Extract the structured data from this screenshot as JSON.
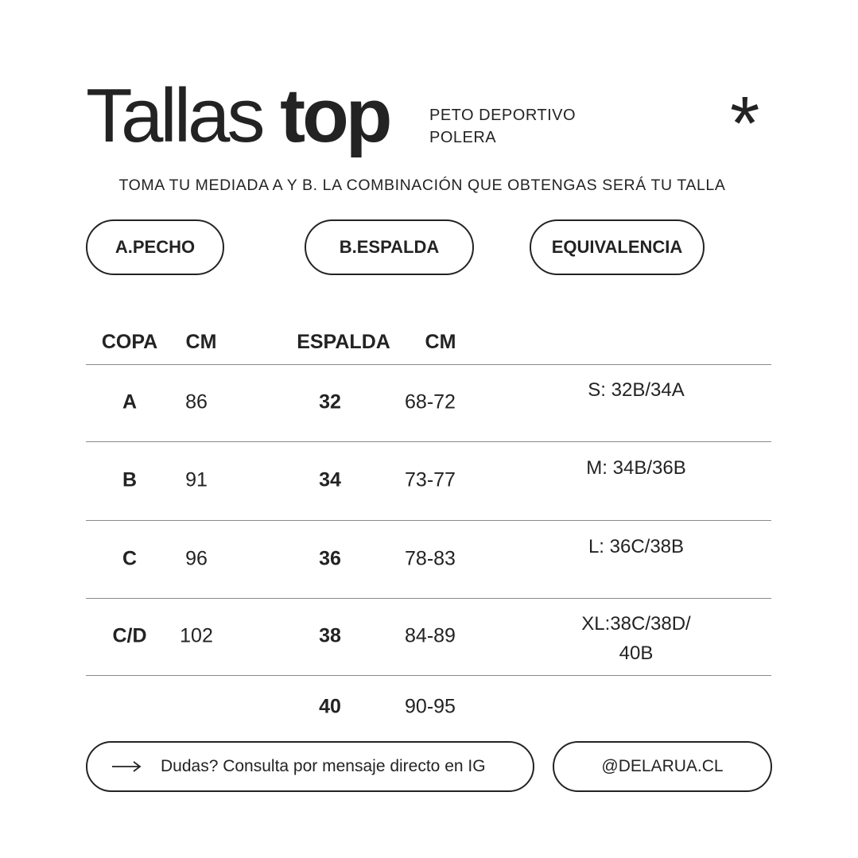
{
  "header": {
    "title_light": "Tallas",
    "title_bold": "top",
    "subtitle_lines": [
      "PETO DEPORTIVO",
      "POLERA"
    ],
    "decoration_icon": "asterisk-icon"
  },
  "instruction": "TOMA TU MEDIADA A Y B. LA COMBINACIÓN QUE OBTENGAS SERÁ TU TALLA",
  "sections": [
    "A.PECHO",
    "B.ESPALDA",
    "EQUIVALENCIA"
  ],
  "table": {
    "headers": [
      "COPA",
      "CM",
      "ESPALDA",
      "CM"
    ],
    "rows": [
      {
        "copa": "A",
        "cm": "86",
        "espalda": "32",
        "espalda_cm": "68-72",
        "equivalencia": [
          "S: 32B/34A"
        ]
      },
      {
        "copa": "B",
        "cm": "91",
        "espalda": "34",
        "espalda_cm": "73-77",
        "equivalencia": [
          "M: 34B/36B"
        ]
      },
      {
        "copa": "C",
        "cm": "96",
        "espalda": "36",
        "espalda_cm": "78-83",
        "equivalencia": [
          "L: 36C/38B"
        ]
      },
      {
        "copa": "C/D",
        "cm": "102",
        "espalda": "38",
        "espalda_cm": "84-89",
        "equivalencia": [
          "XL:38C/38D/",
          "40B"
        ]
      },
      {
        "copa": "",
        "cm": "",
        "espalda": "40",
        "espalda_cm": "90-95",
        "equivalencia": []
      }
    ]
  },
  "footer": {
    "contact_text": "Dudas? Consulta por mensaje directo en IG",
    "contact_icon": "arrow-right-icon",
    "handle": "@DELARUA.CL"
  },
  "colors": {
    "text": "#232323",
    "background": "#ffffff",
    "divider": "#8a8a8a"
  }
}
